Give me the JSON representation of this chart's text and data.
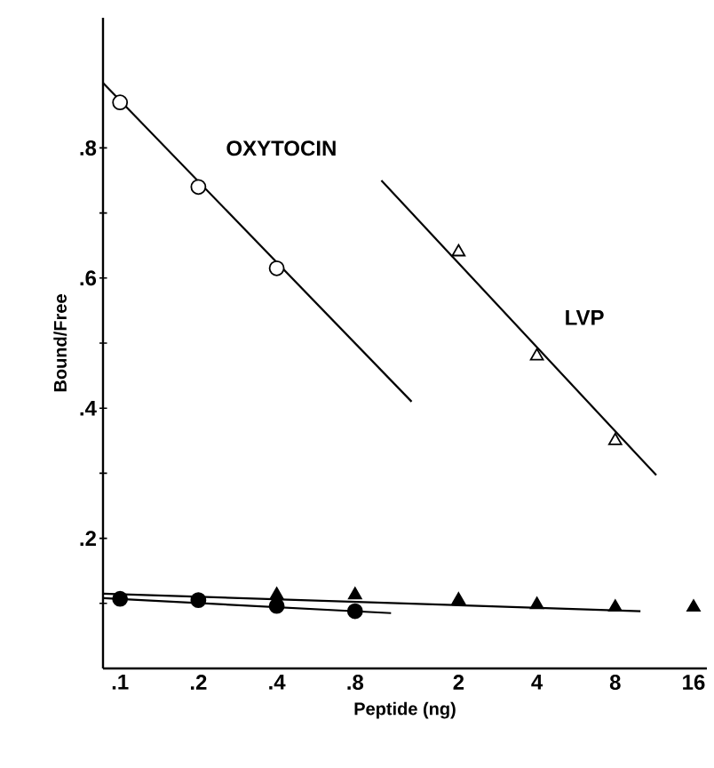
{
  "chart_data": {
    "type": "scatter",
    "xlabel": "Peptide (ng)",
    "ylabel": "Bound/Free",
    "log": "x",
    "grid": false,
    "legend": false,
    "xlim": [
      0.086,
      18
    ],
    "ylim": [
      0,
      1.0
    ],
    "xticks": [
      {
        "value": 0.1,
        "label": ".1"
      },
      {
        "value": 0.2,
        "label": ".2"
      },
      {
        "value": 0.4,
        "label": ".4"
      },
      {
        "value": 0.8,
        "label": ".8"
      },
      2,
      4,
      8,
      16
    ],
    "yticks": [
      {
        "value": 0.1,
        "label": null
      },
      {
        "value": 0.2,
        "label": ".2"
      },
      {
        "value": 0.3,
        "label": null
      },
      {
        "value": 0.4,
        "label": ".4"
      },
      {
        "value": 0.5,
        "label": null
      },
      {
        "value": 0.6,
        "label": ".6"
      },
      {
        "value": 0.7,
        "label": null
      },
      {
        "value": 0.8,
        "label": ".8"
      }
    ],
    "series": [
      {
        "type": "line",
        "marker": "none",
        "color": "#000000",
        "x": [
          0.086,
          1.32
        ],
        "values": [
          0.9,
          0.41
        ]
      },
      {
        "type": "line",
        "marker": "none",
        "color": "#000000",
        "x": [
          1.01,
          11.5
        ],
        "values": [
          0.75,
          0.297
        ]
      },
      {
        "type": "line",
        "marker": "none",
        "color": "#000000",
        "x": [
          0.086,
          1.1
        ],
        "values": [
          0.108,
          0.085
        ]
      },
      {
        "type": "line",
        "marker": "none",
        "color": "#000000",
        "x": [
          0.086,
          10
        ],
        "values": [
          0.115,
          0.088
        ]
      },
      {
        "name": "OXYTOCIN",
        "marker": "circle",
        "color": "#000000",
        "x": [
          0.1,
          0.2,
          0.4
        ],
        "values": [
          0.87,
          0.74,
          0.615
        ]
      },
      {
        "name": "LVP",
        "marker": "triangle",
        "color": "#000000",
        "x": [
          2,
          4,
          8
        ],
        "values": [
          0.64,
          0.48,
          0.35
        ]
      },
      {
        "marker": "circle",
        "color": "#000000",
        "x": [
          0.1,
          0.2,
          0.4,
          0.8
        ],
        "values": [
          0.107,
          0.105,
          0.096,
          0.088
        ]
      },
      {
        "marker": "triangle",
        "color": "#000000",
        "x": [
          0.4,
          0.8,
          2,
          4,
          8,
          16
        ],
        "values": [
          0.113,
          0.113,
          0.105,
          0.098,
          0.094,
          0.094
        ]
      }
    ]
  }
}
